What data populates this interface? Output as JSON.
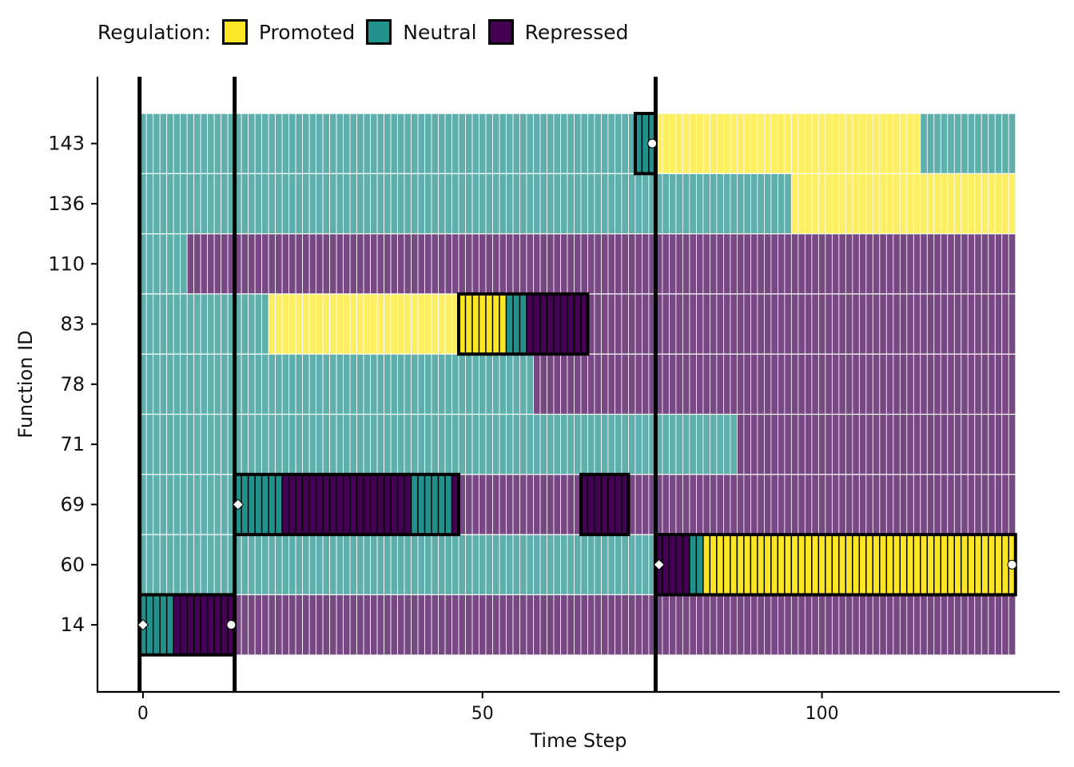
{
  "chart_data": {
    "type": "heatmap",
    "xlabel": "Time Step",
    "ylabel": "Function ID",
    "x_ticks": [
      0,
      50,
      100
    ],
    "xlim": [
      -6.7,
      135
    ],
    "n_steps": 129,
    "legend": {
      "title": "Regulation:",
      "position": "top-left",
      "entries": [
        {
          "name": "Promoted",
          "key": "P",
          "color": "#fde725"
        },
        {
          "name": "Neutral",
          "key": "N",
          "color": "#21918c"
        },
        {
          "name": "Repressed",
          "key": "R",
          "color": "#440154"
        }
      ]
    },
    "cell_opacity": 0.72,
    "rows": [
      {
        "id": "143",
        "segments": [
          {
            "state": "N",
            "from": 0,
            "to": 76
          },
          {
            "state": "P",
            "from": 76,
            "to": 115
          },
          {
            "state": "N",
            "from": 115,
            "to": 129
          }
        ]
      },
      {
        "id": "136",
        "segments": [
          {
            "state": "N",
            "from": 0,
            "to": 96
          },
          {
            "state": "P",
            "from": 96,
            "to": 129
          }
        ]
      },
      {
        "id": "110",
        "segments": [
          {
            "state": "N",
            "from": 0,
            "to": 7
          },
          {
            "state": "R",
            "from": 7,
            "to": 129
          }
        ]
      },
      {
        "id": "83",
        "segments": [
          {
            "state": "N",
            "from": 0,
            "to": 19
          },
          {
            "state": "P",
            "from": 19,
            "to": 54
          },
          {
            "state": "N",
            "from": 54,
            "to": 57
          },
          {
            "state": "R",
            "from": 57,
            "to": 129
          }
        ]
      },
      {
        "id": "78",
        "segments": [
          {
            "state": "N",
            "from": 0,
            "to": 58
          },
          {
            "state": "R",
            "from": 58,
            "to": 129
          }
        ]
      },
      {
        "id": "71",
        "segments": [
          {
            "state": "N",
            "from": 0,
            "to": 88
          },
          {
            "state": "R",
            "from": 88,
            "to": 129
          }
        ]
      },
      {
        "id": "69",
        "segments": [
          {
            "state": "N",
            "from": 0,
            "to": 21
          },
          {
            "state": "R",
            "from": 21,
            "to": 31
          },
          {
            "state": "N",
            "from": 31,
            "to": 31
          },
          {
            "state": "R",
            "from": 31,
            "to": 40
          },
          {
            "state": "N",
            "from": 40,
            "to": 46
          },
          {
            "state": "R",
            "from": 46,
            "to": 129
          }
        ]
      },
      {
        "id": "60",
        "segments": [
          {
            "state": "N",
            "from": 0,
            "to": 76
          },
          {
            "state": "R",
            "from": 76,
            "to": 81
          },
          {
            "state": "N",
            "from": 81,
            "to": 83
          },
          {
            "state": "P",
            "from": 83,
            "to": 129
          }
        ]
      },
      {
        "id": "14",
        "segments": [
          {
            "state": "N",
            "from": 0,
            "to": 5
          },
          {
            "state": "R",
            "from": 5,
            "to": 129
          }
        ]
      }
    ],
    "highlight_boxes": [
      {
        "row": "14",
        "from": 0,
        "to": 14
      },
      {
        "row": "69",
        "from": 14,
        "to": 47
      },
      {
        "row": "69",
        "from": 65,
        "to": 72
      },
      {
        "row": "83",
        "from": 47,
        "to": 66
      },
      {
        "row": "143",
        "from": 73,
        "to": 76
      },
      {
        "row": "60",
        "from": 76,
        "to": 129
      }
    ],
    "vertical_lines": [
      -0.5,
      13.5,
      75.5
    ],
    "markers": [
      {
        "row": "14",
        "x": 0,
        "shape": "diamond"
      },
      {
        "row": "14",
        "x": 13,
        "shape": "circle"
      },
      {
        "row": "69",
        "x": 14,
        "shape": "diamond"
      },
      {
        "row": "143",
        "x": 75,
        "shape": "circle"
      },
      {
        "row": "60",
        "x": 76,
        "shape": "diamond"
      },
      {
        "row": "60",
        "x": 128,
        "shape": "circle"
      }
    ]
  }
}
